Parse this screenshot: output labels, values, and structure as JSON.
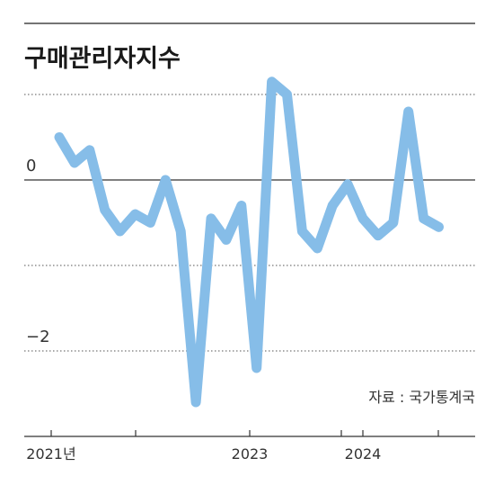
{
  "chart_data": {
    "type": "line",
    "title": "구매관리자지수",
    "source": "자료 : 국가통계국",
    "xlabel": "",
    "ylabel": "",
    "ylim": [
      -2.8,
      1.3
    ],
    "yticks": [
      {
        "value": 1,
        "label": ""
      },
      {
        "value": 0,
        "label": "0"
      },
      {
        "value": -1,
        "label": ""
      },
      {
        "value": -2,
        "label": "−2"
      }
    ],
    "xticks": [
      {
        "x": 0,
        "label": "2021년"
      },
      {
        "x": 9,
        "label": ""
      },
      {
        "x": 21,
        "label": "2023"
      },
      {
        "x": 33,
        "label": ""
      },
      {
        "x": 41,
        "label": "2024"
      },
      {
        "x": 42,
        "label": ""
      }
    ],
    "grid": true,
    "color": "#86bde8",
    "series": [
      {
        "values": [
          0.5,
          0.2,
          0.35,
          -0.35,
          -0.6,
          -0.4,
          -0.5,
          0.0,
          -0.6,
          -2.6,
          -0.45,
          -0.7,
          -0.3,
          -2.2,
          1.15,
          1.0,
          -0.6,
          -0.8,
          -0.3,
          -0.05,
          -0.45,
          -0.65,
          -0.5,
          0.8,
          -0.45,
          -0.55
        ]
      }
    ]
  }
}
